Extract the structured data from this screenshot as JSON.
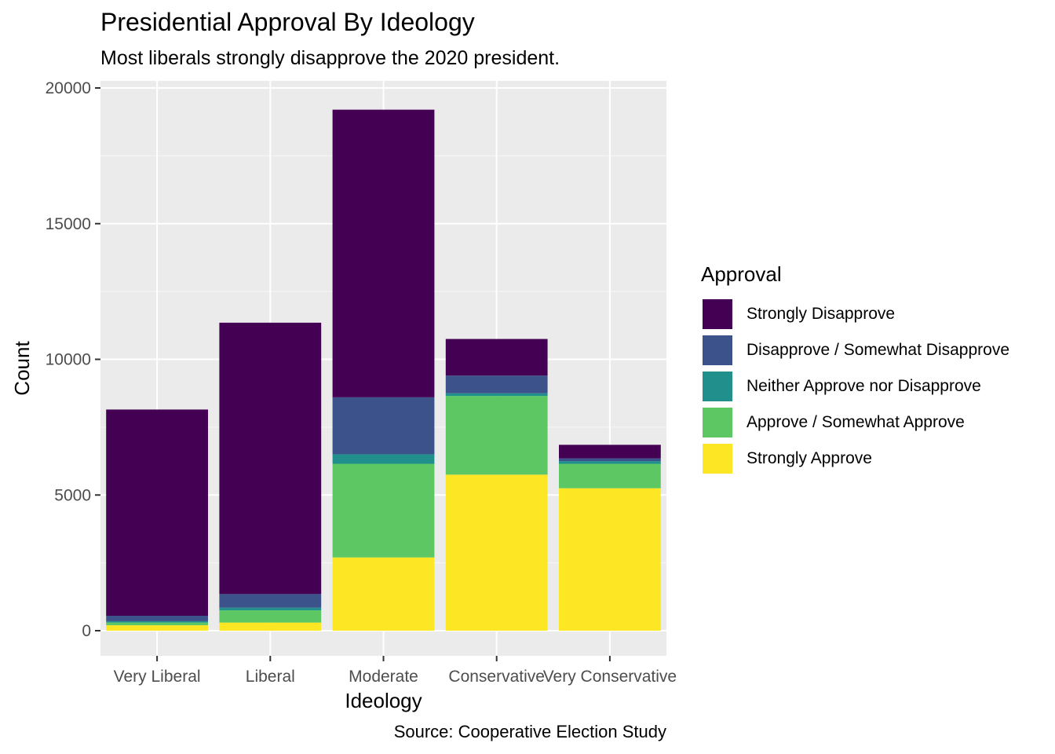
{
  "chart_data": {
    "type": "bar",
    "stacked": true,
    "title": "Presidential Approval By Ideology",
    "subtitle": "Most liberals strongly disapprove the 2020 president.",
    "caption": "Source: Cooperative Election Study",
    "xlabel": "Ideology",
    "ylabel": "Count",
    "ylim": [
      0,
      21000
    ],
    "yticks": [
      0,
      5000,
      10000,
      15000,
      20000
    ],
    "grid": true,
    "legend_title": "Approval",
    "legend_position": "right",
    "categories": [
      "Very Liberal",
      "Liberal",
      "Moderate",
      "Conservative",
      "Very Conservative"
    ],
    "series": [
      {
        "name": "Strongly Approve",
        "color": "#FDE725",
        "values": [
          200,
          300,
          2700,
          5750,
          5250
        ]
      },
      {
        "name": "Approve / Somewhat Approve",
        "color": "#5DC863",
        "values": [
          100,
          450,
          3450,
          2900,
          900
        ]
      },
      {
        "name": "Neither Approve nor Disapprove",
        "color": "#21908C",
        "values": [
          50,
          100,
          350,
          100,
          100
        ]
      },
      {
        "name": "Disapprove / Somewhat Disapprove",
        "color": "#3B528B",
        "values": [
          200,
          500,
          2100,
          650,
          100
        ]
      },
      {
        "name": "Strongly Disapprove",
        "color": "#440154",
        "values": [
          7600,
          10000,
          10600,
          1350,
          500
        ]
      }
    ],
    "legend_order": [
      "Strongly Disapprove",
      "Disapprove / Somewhat Disapprove",
      "Neither Approve nor Disapprove",
      "Approve / Somewhat Approve",
      "Strongly Approve"
    ]
  }
}
